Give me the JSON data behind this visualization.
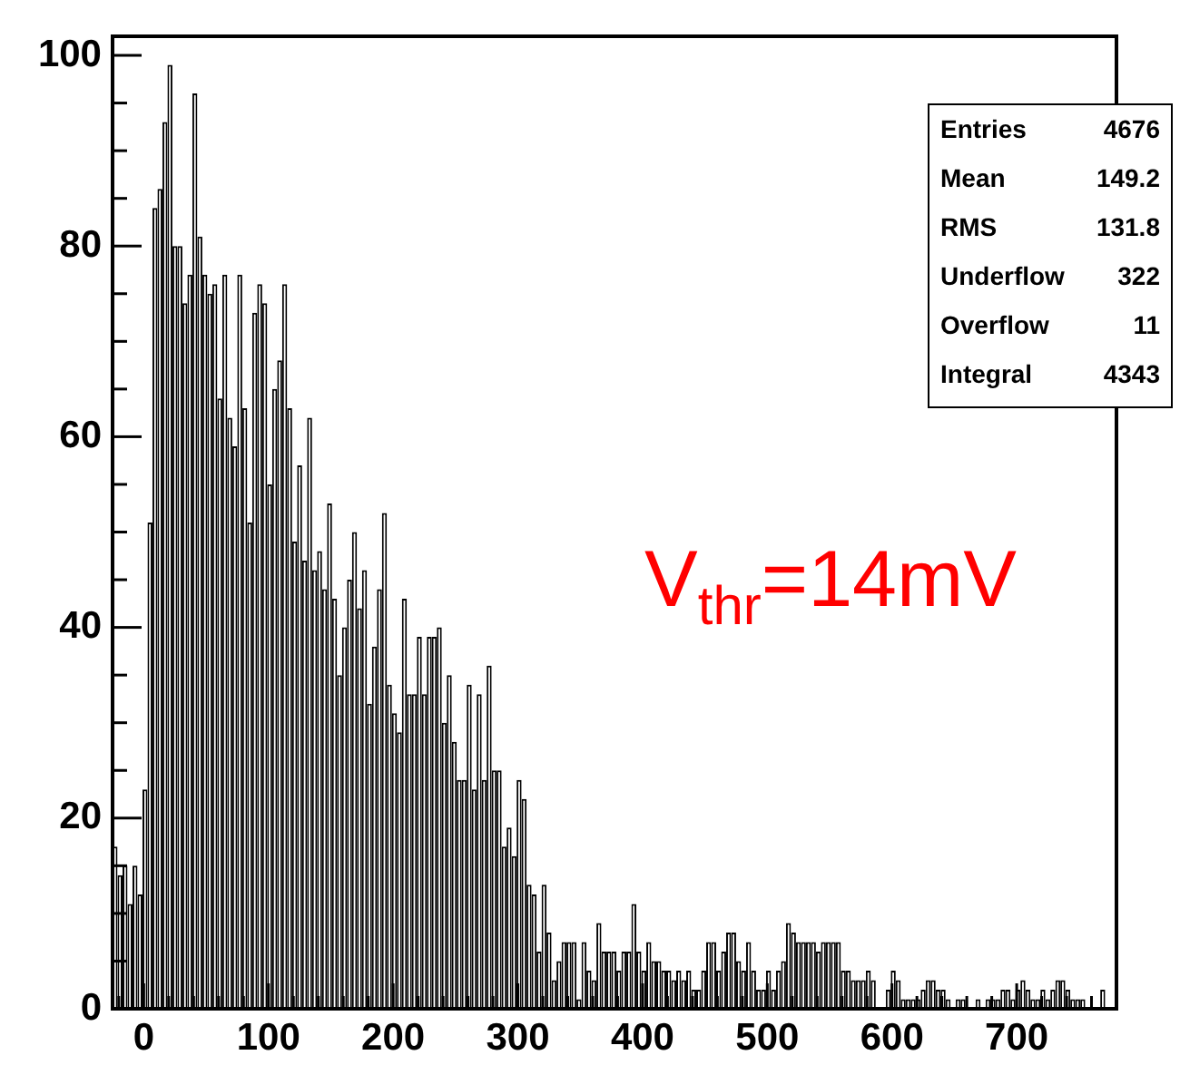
{
  "chart_data": {
    "type": "histogram",
    "bins": [
      -25,
      -21,
      -17,
      -13,
      -9,
      -5,
      -1,
      3,
      7,
      11,
      15,
      19,
      23,
      27,
      31,
      35,
      39,
      43,
      47,
      51,
      55,
      59,
      63,
      67,
      71,
      75,
      79,
      83,
      87,
      91,
      95,
      99,
      103,
      107,
      111,
      115,
      119,
      123,
      127,
      131,
      135,
      139,
      143,
      147,
      151,
      155,
      159,
      163,
      167,
      171,
      175,
      179,
      183,
      187,
      191,
      195,
      199,
      203,
      207,
      211,
      215,
      219,
      223,
      227,
      231,
      235,
      239,
      243,
      247,
      251,
      255,
      259,
      263,
      267,
      271,
      275,
      279,
      283,
      287,
      291,
      295,
      299,
      303,
      307,
      311,
      315,
      319,
      323,
      327,
      331,
      335,
      339,
      343,
      347,
      351,
      355,
      359,
      363,
      367,
      371,
      375,
      379,
      383,
      387,
      391,
      395,
      399,
      403,
      407,
      411,
      415,
      419,
      423,
      427,
      431,
      435,
      439,
      443,
      447,
      451,
      455,
      459,
      463,
      467,
      471,
      475,
      479,
      483,
      487,
      491,
      495,
      499,
      503,
      507,
      511,
      515,
      519,
      523,
      527,
      531,
      535,
      539,
      543,
      547,
      551,
      555,
      559,
      563,
      567,
      571,
      575,
      579,
      583,
      587,
      591,
      595,
      599,
      603,
      607,
      611,
      615,
      619,
      623,
      627,
      631,
      635,
      639,
      643,
      647,
      651,
      655,
      659,
      663,
      667,
      671,
      675,
      679,
      683,
      687,
      691,
      695,
      699,
      703,
      707,
      711,
      715,
      719,
      723,
      727,
      731,
      735,
      739,
      743,
      747,
      751,
      755,
      759,
      763,
      767,
      771,
      775
    ],
    "values": [
      17,
      14,
      15,
      11,
      15,
      12,
      23,
      51,
      84,
      86,
      93,
      99,
      80,
      80,
      74,
      77,
      96,
      81,
      77,
      75,
      76,
      64,
      77,
      62,
      59,
      77,
      63,
      51,
      73,
      76,
      74,
      55,
      65,
      68,
      76,
      63,
      49,
      57,
      47,
      62,
      46,
      48,
      44,
      53,
      43,
      35,
      40,
      45,
      50,
      42,
      46,
      32,
      38,
      44,
      52,
      34,
      31,
      29,
      43,
      33,
      33,
      39,
      33,
      39,
      39,
      40,
      30,
      35,
      28,
      24,
      24,
      34,
      23,
      33,
      24,
      36,
      25,
      25,
      17,
      19,
      16,
      24,
      22,
      13,
      12,
      6,
      13,
      8,
      3,
      5,
      7,
      7,
      7,
      1,
      7,
      4,
      3,
      9,
      6,
      6,
      6,
      4,
      6,
      6,
      11,
      6,
      4,
      7,
      5,
      5,
      4,
      4,
      3,
      4,
      3,
      4,
      2,
      2,
      4,
      7,
      7,
      4,
      6,
      8,
      8,
      5,
      4,
      7,
      4,
      2,
      2,
      4,
      2,
      4,
      5,
      9,
      8,
      7,
      7,
      7,
      7,
      6,
      7,
      7,
      7,
      7,
      4,
      4,
      3,
      3,
      3,
      4,
      3,
      0,
      0,
      2,
      4,
      3,
      1,
      1,
      1,
      1,
      2,
      3,
      3,
      2,
      2,
      1,
      0,
      1,
      1,
      0,
      0,
      1,
      0,
      1,
      1,
      1,
      2,
      2,
      1,
      2,
      3,
      2,
      1,
      1,
      2,
      1,
      2,
      3,
      3,
      2,
      1,
      1,
      1,
      0,
      0,
      0,
      2,
      0
    ],
    "color": "#000000",
    "xlim": [
      -25,
      780
    ],
    "xticks": [
      {
        "value": -20,
        "label": null
      },
      0,
      {
        "value": 20,
        "label": null
      },
      {
        "value": 40,
        "label": null
      },
      {
        "value": 60,
        "label": null
      },
      {
        "value": 80,
        "label": null
      },
      100,
      {
        "value": 120,
        "label": null
      },
      {
        "value": 140,
        "label": null
      },
      {
        "value": 160,
        "label": null
      },
      {
        "value": 180,
        "label": null
      },
      200,
      {
        "value": 220,
        "label": null
      },
      {
        "value": 240,
        "label": null
      },
      {
        "value": 260,
        "label": null
      },
      {
        "value": 280,
        "label": null
      },
      300,
      {
        "value": 320,
        "label": null
      },
      {
        "value": 340,
        "label": null
      },
      {
        "value": 360,
        "label": null
      },
      {
        "value": 380,
        "label": null
      },
      400,
      {
        "value": 420,
        "label": null
      },
      {
        "value": 440,
        "label": null
      },
      {
        "value": 460,
        "label": null
      },
      {
        "value": 480,
        "label": null
      },
      500,
      {
        "value": 520,
        "label": null
      },
      {
        "value": 540,
        "label": null
      },
      {
        "value": 560,
        "label": null
      },
      {
        "value": 580,
        "label": null
      },
      600,
      {
        "value": 620,
        "label": null
      },
      {
        "value": 640,
        "label": null
      },
      {
        "value": 660,
        "label": null
      },
      {
        "value": 680,
        "label": null
      },
      700,
      {
        "value": 720,
        "label": null
      },
      {
        "value": 740,
        "label": null
      },
      {
        "value": 760,
        "label": null
      }
    ],
    "ylim": [
      0,
      102
    ],
    "yticks": [
      0,
      {
        "value": 5,
        "label": null
      },
      {
        "value": 10,
        "label": null
      },
      {
        "value": 15,
        "label": null
      },
      20,
      {
        "value": 25,
        "label": null
      },
      {
        "value": 30,
        "label": null
      },
      {
        "value": 35,
        "label": null
      },
      40,
      {
        "value": 45,
        "label": null
      },
      {
        "value": 50,
        "label": null
      },
      {
        "value": 55,
        "label": null
      },
      60,
      {
        "value": 65,
        "label": null
      },
      {
        "value": 70,
        "label": null
      },
      {
        "value": 75,
        "label": null
      },
      80,
      {
        "value": 85,
        "label": null
      },
      {
        "value": 90,
        "label": null
      },
      {
        "value": 95,
        "label": null
      },
      100
    ],
    "annotations": [
      "Entries 4676",
      "Mean 149.2",
      "RMS 131.8",
      "Underflow 322",
      "Overflow 11",
      "Integral 4343",
      "V$_{thr}$=14mV"
    ]
  }
}
